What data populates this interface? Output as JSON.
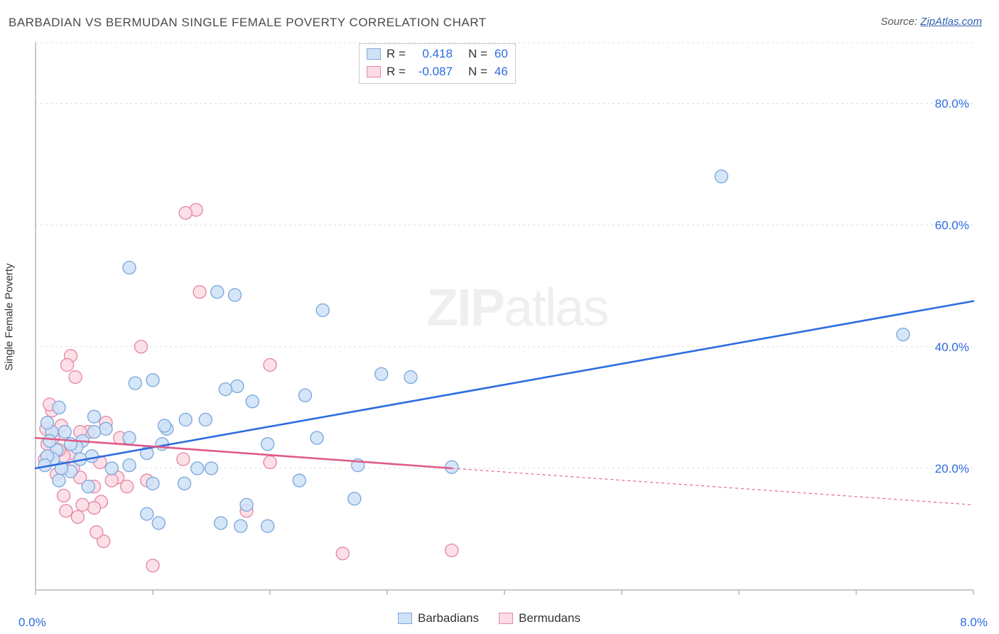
{
  "title": "BARBADIAN VS BERMUDAN SINGLE FEMALE POVERTY CORRELATION CHART",
  "source_prefix": "Source: ",
  "source_link": "ZipAtlas.com",
  "ylabel": "Single Female Poverty",
  "chart": {
    "type": "scatter",
    "xlim": [
      0.0,
      8.0
    ],
    "ylim": [
      0.0,
      90.0
    ],
    "x_min_label": "0.0%",
    "x_max_label": "8.0%",
    "x_tick_positions": [
      0.0,
      1.0,
      2.0,
      3.0,
      4.0,
      5.0,
      6.0,
      7.0,
      8.0
    ],
    "y_ticks": [
      20.0,
      40.0,
      60.0,
      80.0
    ],
    "y_tick_labels": [
      "20.0%",
      "40.0%",
      "60.0%",
      "80.0%"
    ],
    "background_color": "#ffffff",
    "grid_color": "#dcdcdc",
    "axis_color": "#b8b8b8",
    "label_color_x": "#2d6cdf",
    "label_color_y": "#2d6cdf",
    "marker_radius": 9,
    "marker_stroke_width": 1.4,
    "line_width_solid": 2.6,
    "line_width_dash": 1.1,
    "dash_pattern": "4 4",
    "series": {
      "barbadians": {
        "label": "Barbadians",
        "fill": "#cfe2f8",
        "stroke": "#7fa9db",
        "line_color": "#2d6cdf",
        "R": "0.418",
        "N": "60",
        "trend_solid": {
          "x1": 0.0,
          "y1": 20.0,
          "x2": 8.0,
          "y2": 47.5
        },
        "trend_dash": null,
        "points": [
          [
            7.4,
            42.0
          ],
          [
            5.85,
            68.0
          ],
          [
            3.55,
            20.2
          ],
          [
            3.2,
            35.0
          ],
          [
            2.95,
            35.5
          ],
          [
            2.72,
            15.0
          ],
          [
            2.75,
            20.5
          ],
          [
            2.45,
            46.0
          ],
          [
            2.4,
            25.0
          ],
          [
            2.3,
            32.0
          ],
          [
            2.25,
            18.0
          ],
          [
            1.98,
            24.0
          ],
          [
            1.98,
            10.5
          ],
          [
            1.85,
            31.0
          ],
          [
            1.8,
            14.0
          ],
          [
            1.75,
            10.5
          ],
          [
            1.72,
            33.5
          ],
          [
            1.7,
            48.5
          ],
          [
            1.55,
            49.0
          ],
          [
            1.62,
            33.0
          ],
          [
            1.58,
            11.0
          ],
          [
            1.5,
            20.0
          ],
          [
            1.45,
            28.0
          ],
          [
            1.38,
            20.0
          ],
          [
            1.28,
            28.0
          ],
          [
            1.27,
            17.5
          ],
          [
            1.12,
            26.5
          ],
          [
            1.1,
            27.0
          ],
          [
            1.05,
            11.0
          ],
          [
            1.08,
            24.0
          ],
          [
            1.0,
            17.5
          ],
          [
            1.0,
            34.5
          ],
          [
            0.95,
            22.5
          ],
          [
            0.85,
            34.0
          ],
          [
            0.95,
            12.5
          ],
          [
            0.8,
            25.0
          ],
          [
            0.8,
            53.0
          ],
          [
            0.8,
            20.5
          ],
          [
            0.65,
            20.0
          ],
          [
            0.6,
            26.5
          ],
          [
            0.5,
            26.0
          ],
          [
            0.5,
            28.5
          ],
          [
            0.48,
            22.0
          ],
          [
            0.45,
            17.0
          ],
          [
            0.4,
            24.5
          ],
          [
            0.38,
            21.5
          ],
          [
            0.35,
            23.5
          ],
          [
            0.3,
            24.0
          ],
          [
            0.3,
            19.5
          ],
          [
            0.25,
            26.0
          ],
          [
            0.22,
            20.0
          ],
          [
            0.2,
            30.0
          ],
          [
            0.2,
            18.0
          ],
          [
            0.18,
            23.0
          ],
          [
            0.15,
            21.5
          ],
          [
            0.14,
            26.0
          ],
          [
            0.12,
            24.5
          ],
          [
            0.1,
            22.0
          ],
          [
            0.1,
            27.5
          ],
          [
            0.08,
            20.5
          ]
        ]
      },
      "bermudans": {
        "label": "Bermudans",
        "fill": "#fcdbe4",
        "stroke": "#e68aa4",
        "line_color": "#e05a86",
        "R": "-0.087",
        "N": "46",
        "trend_solid": {
          "x1": 0.0,
          "y1": 25.0,
          "x2": 3.55,
          "y2": 20.0
        },
        "trend_dash": {
          "x1": 3.55,
          "y1": 20.0,
          "x2": 8.0,
          "y2": 14.0
        },
        "points": [
          [
            3.55,
            6.5
          ],
          [
            2.62,
            6.0
          ],
          [
            2.0,
            21.0
          ],
          [
            2.0,
            37.0
          ],
          [
            1.8,
            13.0
          ],
          [
            1.4,
            49.0
          ],
          [
            1.37,
            62.5
          ],
          [
            1.28,
            62.0
          ],
          [
            1.26,
            21.5
          ],
          [
            1.0,
            4.0
          ],
          [
            0.95,
            18.0
          ],
          [
            0.9,
            40.0
          ],
          [
            0.78,
            17.0
          ],
          [
            0.72,
            25.0
          ],
          [
            0.7,
            18.5
          ],
          [
            0.65,
            18.0
          ],
          [
            0.6,
            27.5
          ],
          [
            0.58,
            8.0
          ],
          [
            0.56,
            14.5
          ],
          [
            0.52,
            9.5
          ],
          [
            0.5,
            13.5
          ],
          [
            0.5,
            17.0
          ],
          [
            0.55,
            21.0
          ],
          [
            0.45,
            26.0
          ],
          [
            0.4,
            14.0
          ],
          [
            0.38,
            18.5
          ],
          [
            0.38,
            26.0
          ],
          [
            0.36,
            12.0
          ],
          [
            0.34,
            35.0
          ],
          [
            0.32,
            20.0
          ],
          [
            0.3,
            22.5
          ],
          [
            0.3,
            38.5
          ],
          [
            0.26,
            13.0
          ],
          [
            0.27,
            37.0
          ],
          [
            0.24,
            22.0
          ],
          [
            0.24,
            15.5
          ],
          [
            0.22,
            27.0
          ],
          [
            0.2,
            23.0
          ],
          [
            0.18,
            19.0
          ],
          [
            0.15,
            25.0
          ],
          [
            0.14,
            29.5
          ],
          [
            0.12,
            30.5
          ],
          [
            0.12,
            22.0
          ],
          [
            0.1,
            24.0
          ],
          [
            0.09,
            26.5
          ],
          [
            0.08,
            21.5
          ]
        ]
      }
    }
  },
  "value_color": "#2d6cdf",
  "watermark": {
    "zip": "ZIP",
    "atlas": "atlas",
    "font_size": 74
  }
}
